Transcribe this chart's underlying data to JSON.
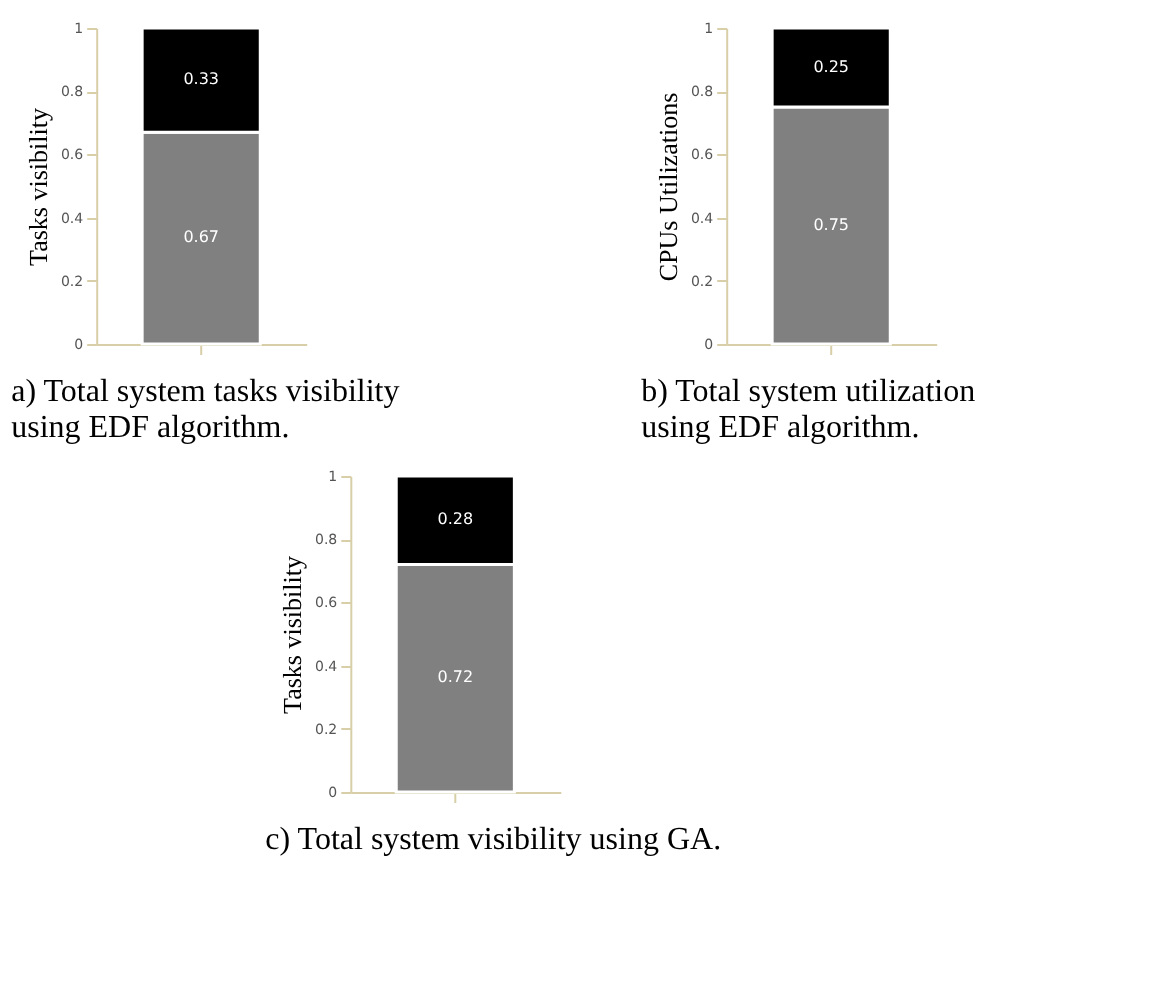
{
  "chart_data": [
    {
      "type": "bar",
      "stacked": true,
      "categories": [
        null
      ],
      "ylabel": "Tasks visibility",
      "ylim": [
        0,
        1
      ],
      "yticks": [
        0,
        0.2,
        0.4,
        0.6,
        0.8,
        1
      ],
      "tick_labels": "y",
      "data_labels": true,
      "annotations": [
        "a) Total system tasks visibility\n  using EDF algorithm."
      ],
      "series": [
        {
          "color": "#808080",
          "values": [
            0.67
          ]
        },
        {
          "color": "#000000",
          "values": [
            0.33
          ]
        }
      ]
    },
    {
      "type": "bar",
      "stacked": true,
      "categories": [
        null
      ],
      "ylabel": "CPUs Utilizations",
      "ylim": [
        0,
        1
      ],
      "yticks": [
        0,
        0.2,
        0.4,
        0.6,
        0.8,
        1
      ],
      "tick_labels": "y",
      "data_labels": true,
      "annotations": [
        "b) Total system utilization\n  using EDF algorithm."
      ],
      "series": [
        {
          "color": "#808080",
          "values": [
            0.75
          ]
        },
        {
          "color": "#000000",
          "values": [
            0.25
          ]
        }
      ]
    },
    {
      "type": "bar",
      "stacked": true,
      "categories": [
        null
      ],
      "ylabel": "Tasks visibility",
      "ylim": [
        0,
        1
      ],
      "yticks": [
        0,
        0.2,
        0.4,
        0.6,
        0.8,
        1
      ],
      "tick_labels": "y",
      "data_labels": true,
      "annotations": [
        "c) Total system visibility using GA."
      ],
      "series": [
        {
          "color": "#808080",
          "values": [
            0.72
          ]
        },
        {
          "color": "#000000",
          "values": [
            0.28
          ]
        }
      ]
    }
  ]
}
